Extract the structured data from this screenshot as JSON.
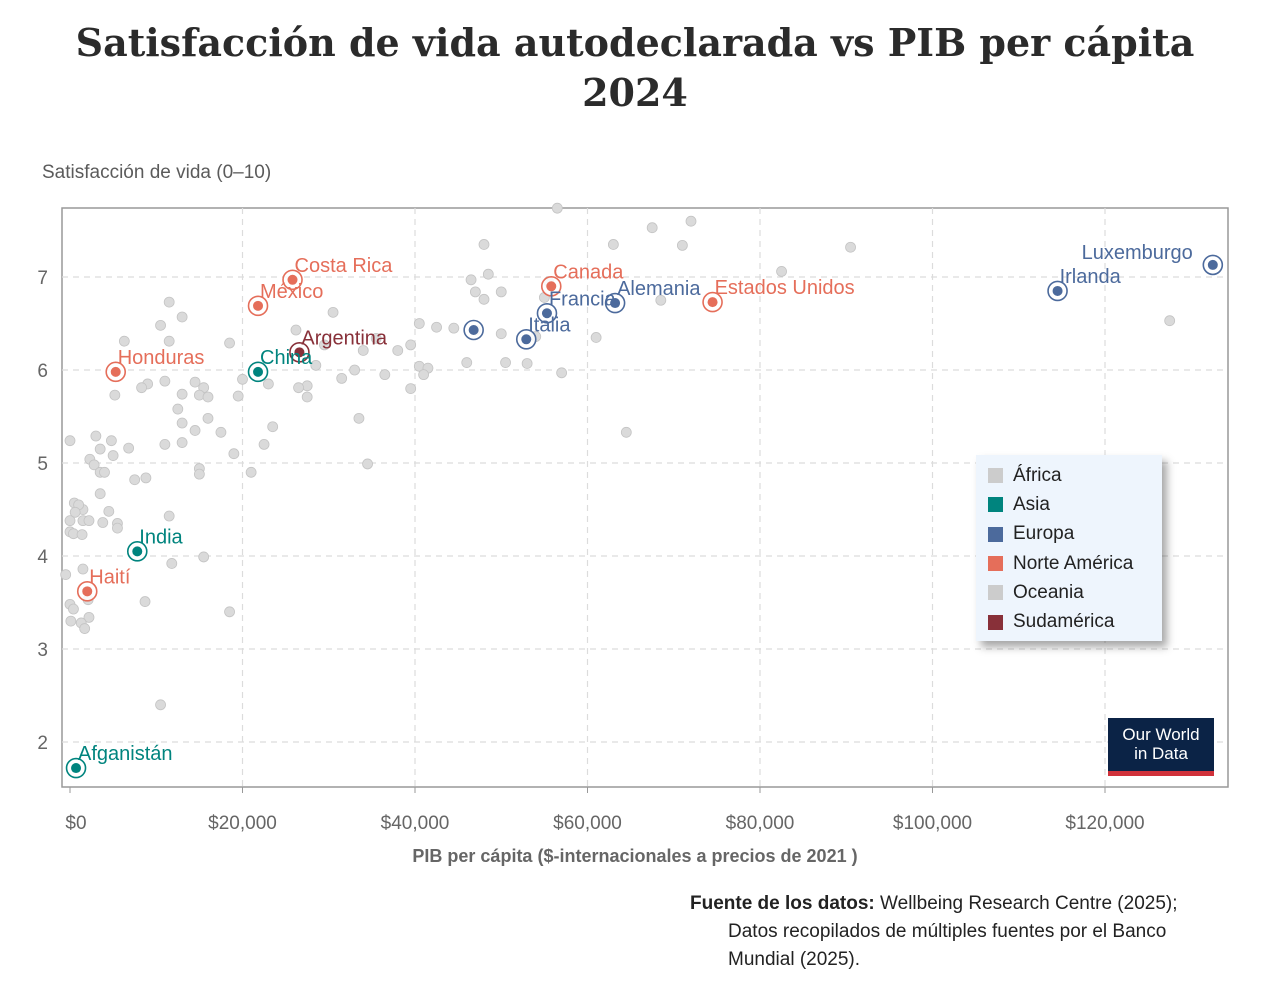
{
  "chart_data": {
    "type": "scatter",
    "title": "Satisfacción de vida autodeclarada vs PIB per cápita",
    "subtitle": "2024",
    "ylabel": "Satisfacción de vida (0–10)",
    "xlabel": "PIB per cápita ($-internacionales a precios de 2021 )",
    "xlim": [
      -1000,
      134000
    ],
    "ylim": [
      1.55,
      7.75
    ],
    "x_ticks": [
      0,
      20000,
      40000,
      60000,
      80000,
      100000,
      120000
    ],
    "x_tick_labels": [
      "$0",
      "$20,000",
      "$40,000",
      "$60,000",
      "$80,000",
      "$100,000",
      "$120,000"
    ],
    "y_ticks": [
      2,
      3,
      4,
      5,
      6,
      7
    ],
    "y_tick_labels": [
      "2",
      "3",
      "4",
      "5",
      "6",
      "7"
    ],
    "grid": true,
    "legend_position": "right",
    "legend": [
      {
        "name": "África",
        "color": "#cccccc"
      },
      {
        "name": "Asia",
        "color": "#00847e"
      },
      {
        "name": "Europa",
        "color": "#4c6a9c"
      },
      {
        "name": "Norte América",
        "color": "#e56e5a"
      },
      {
        "name": "Oceania",
        "color": "#cccccc"
      },
      {
        "name": "Sudamérica",
        "color": "#883039"
      }
    ],
    "highlighted": [
      {
        "label": "Luxemburgo",
        "x": 132500,
        "y": 7.13,
        "group": "Europa",
        "color": "#4c6a9c",
        "label_pos": "top-left"
      },
      {
        "label": "Irlanda",
        "x": 114500,
        "y": 6.85,
        "group": "Europa",
        "color": "#4c6a9c",
        "label_pos": "right"
      },
      {
        "label": "Estados Unidos",
        "x": 74500,
        "y": 6.73,
        "group": "Norte América",
        "color": "#e56e5a",
        "label_pos": "right"
      },
      {
        "label": "Alemania",
        "x": 63200,
        "y": 6.72,
        "group": "Europa",
        "color": "#4c6a9c",
        "label_pos": "right"
      },
      {
        "label": "Canada",
        "x": 55800,
        "y": 6.9,
        "group": "Norte América",
        "color": "#e56e5a",
        "label_pos": "right"
      },
      {
        "label": "Francia",
        "x": 55300,
        "y": 6.61,
        "group": "Europa",
        "color": "#4c6a9c",
        "label_pos": "right"
      },
      {
        "label": "Italia",
        "x": 52900,
        "y": 6.33,
        "group": "Europa",
        "color": "#4c6a9c",
        "label_pos": "right"
      },
      {
        "label": "",
        "x": 46800,
        "y": 6.43,
        "group": "Europa",
        "color": "#4c6a9c",
        "label_pos": "none"
      },
      {
        "label": "Costa Rica",
        "x": 25800,
        "y": 6.97,
        "group": "Norte América",
        "color": "#e56e5a",
        "label_pos": "right"
      },
      {
        "label": "México",
        "x": 21800,
        "y": 6.69,
        "group": "Norte América",
        "color": "#e56e5a",
        "label_pos": "right"
      },
      {
        "label": "Argentina",
        "x": 26600,
        "y": 6.19,
        "group": "Sudamérica",
        "color": "#883039",
        "label_pos": "right"
      },
      {
        "label": "China",
        "x": 21800,
        "y": 5.98,
        "group": "Asia",
        "color": "#00847e",
        "label_pos": "right"
      },
      {
        "label": "Honduras",
        "x": 5300,
        "y": 5.98,
        "group": "Norte América",
        "color": "#e56e5a",
        "label_pos": "right"
      },
      {
        "label": "India",
        "x": 7800,
        "y": 4.05,
        "group": "Asia",
        "color": "#00847e",
        "label_pos": "right"
      },
      {
        "label": "Haití",
        "x": 2000,
        "y": 3.62,
        "group": "Norte América",
        "color": "#e56e5a",
        "label_pos": "right"
      },
      {
        "label": "Afganistán",
        "x": 700,
        "y": 1.72,
        "group": "Asia",
        "color": "#00847e",
        "label_pos": "right"
      }
    ],
    "background_points": [
      [
        56500,
        7.74
      ],
      [
        72000,
        7.6
      ],
      [
        67500,
        7.53
      ],
      [
        90500,
        7.32
      ],
      [
        71000,
        7.34
      ],
      [
        63000,
        7.35
      ],
      [
        48000,
        7.35
      ],
      [
        82500,
        7.06
      ],
      [
        48500,
        7.03
      ],
      [
        46500,
        6.97
      ],
      [
        55500,
        6.95
      ],
      [
        50000,
        6.84
      ],
      [
        47000,
        6.84
      ],
      [
        55000,
        6.78
      ],
      [
        48000,
        6.76
      ],
      [
        68500,
        6.75
      ],
      [
        127500,
        6.53
      ],
      [
        11500,
        6.73
      ],
      [
        13000,
        6.57
      ],
      [
        10500,
        6.48
      ],
      [
        6300,
        6.31
      ],
      [
        11500,
        6.31
      ],
      [
        18500,
        6.29
      ],
      [
        30500,
        6.62
      ],
      [
        26200,
        6.43
      ],
      [
        40500,
        6.5
      ],
      [
        42500,
        6.46
      ],
      [
        44500,
        6.45
      ],
      [
        47000,
        6.43
      ],
      [
        50000,
        6.39
      ],
      [
        54000,
        6.36
      ],
      [
        35500,
        6.34
      ],
      [
        29500,
        6.27
      ],
      [
        39500,
        6.27
      ],
      [
        61000,
        6.35
      ],
      [
        34000,
        6.21
      ],
      [
        38000,
        6.21
      ],
      [
        33000,
        6.0
      ],
      [
        40500,
        6.04
      ],
      [
        41500,
        6.02
      ],
      [
        41000,
        5.95
      ],
      [
        36500,
        5.95
      ],
      [
        31500,
        5.91
      ],
      [
        28500,
        6.05
      ],
      [
        46000,
        6.08
      ],
      [
        50500,
        6.08
      ],
      [
        53000,
        6.07
      ],
      [
        57000,
        5.97
      ],
      [
        39500,
        5.8
      ],
      [
        27500,
        5.83
      ],
      [
        27500,
        5.71
      ],
      [
        26500,
        5.81
      ],
      [
        20000,
        5.9
      ],
      [
        23000,
        5.85
      ],
      [
        9000,
        5.85
      ],
      [
        8300,
        5.81
      ],
      [
        14500,
        5.87
      ],
      [
        15500,
        5.81
      ],
      [
        13000,
        5.74
      ],
      [
        15000,
        5.73
      ],
      [
        19500,
        5.72
      ],
      [
        16000,
        5.71
      ],
      [
        5200,
        5.73
      ],
      [
        11000,
        5.88
      ],
      [
        12500,
        5.58
      ],
      [
        16000,
        5.48
      ],
      [
        13000,
        5.43
      ],
      [
        17500,
        5.33
      ],
      [
        14500,
        5.35
      ],
      [
        23500,
        5.39
      ],
      [
        33500,
        5.48
      ],
      [
        64500,
        5.33
      ],
      [
        13000,
        5.22
      ],
      [
        11000,
        5.2
      ],
      [
        22500,
        5.2
      ],
      [
        3000,
        5.29
      ],
      [
        4800,
        5.24
      ],
      [
        6800,
        5.16
      ],
      [
        0,
        5.24
      ],
      [
        3500,
        5.15
      ],
      [
        5000,
        5.08
      ],
      [
        2300,
        5.04
      ],
      [
        2800,
        4.98
      ],
      [
        3500,
        4.9
      ],
      [
        4000,
        4.9
      ],
      [
        15000,
        4.94
      ],
      [
        15000,
        4.88
      ],
      [
        19000,
        5.1
      ],
      [
        21000,
        4.9
      ],
      [
        34500,
        4.99
      ],
      [
        7500,
        4.82
      ],
      [
        8800,
        4.84
      ],
      [
        3500,
        4.67
      ],
      [
        4500,
        4.48
      ],
      [
        1500,
        4.5
      ],
      [
        500,
        4.57
      ],
      [
        1000,
        4.55
      ],
      [
        0,
        4.38
      ],
      [
        600,
        4.47
      ],
      [
        1500,
        4.38
      ],
      [
        2200,
        4.38
      ],
      [
        3800,
        4.36
      ],
      [
        5500,
        4.35
      ],
      [
        5500,
        4.3
      ],
      [
        11500,
        4.43
      ],
      [
        0,
        4.26
      ],
      [
        400,
        4.24
      ],
      [
        1400,
        4.23
      ],
      [
        1500,
        3.86
      ],
      [
        -500,
        3.8
      ],
      [
        11800,
        3.92
      ],
      [
        15500,
        3.99
      ],
      [
        0,
        3.48
      ],
      [
        400,
        3.43
      ],
      [
        2100,
        3.53
      ],
      [
        2200,
        3.34
      ],
      [
        1300,
        3.28
      ],
      [
        1700,
        3.22
      ],
      [
        8700,
        3.51
      ],
      [
        18500,
        3.4
      ],
      [
        100,
        3.3
      ],
      [
        10500,
        2.4
      ]
    ]
  },
  "source": {
    "label": "Fuente de los datos:",
    "line1": "Wellbeing Research Centre (2025);",
    "line2": "Datos recopilados de múltiples fuentes por el Banco",
    "line3": "Mundial (2025)."
  },
  "logo": {
    "line1": "Our World",
    "line2": "in Data"
  }
}
